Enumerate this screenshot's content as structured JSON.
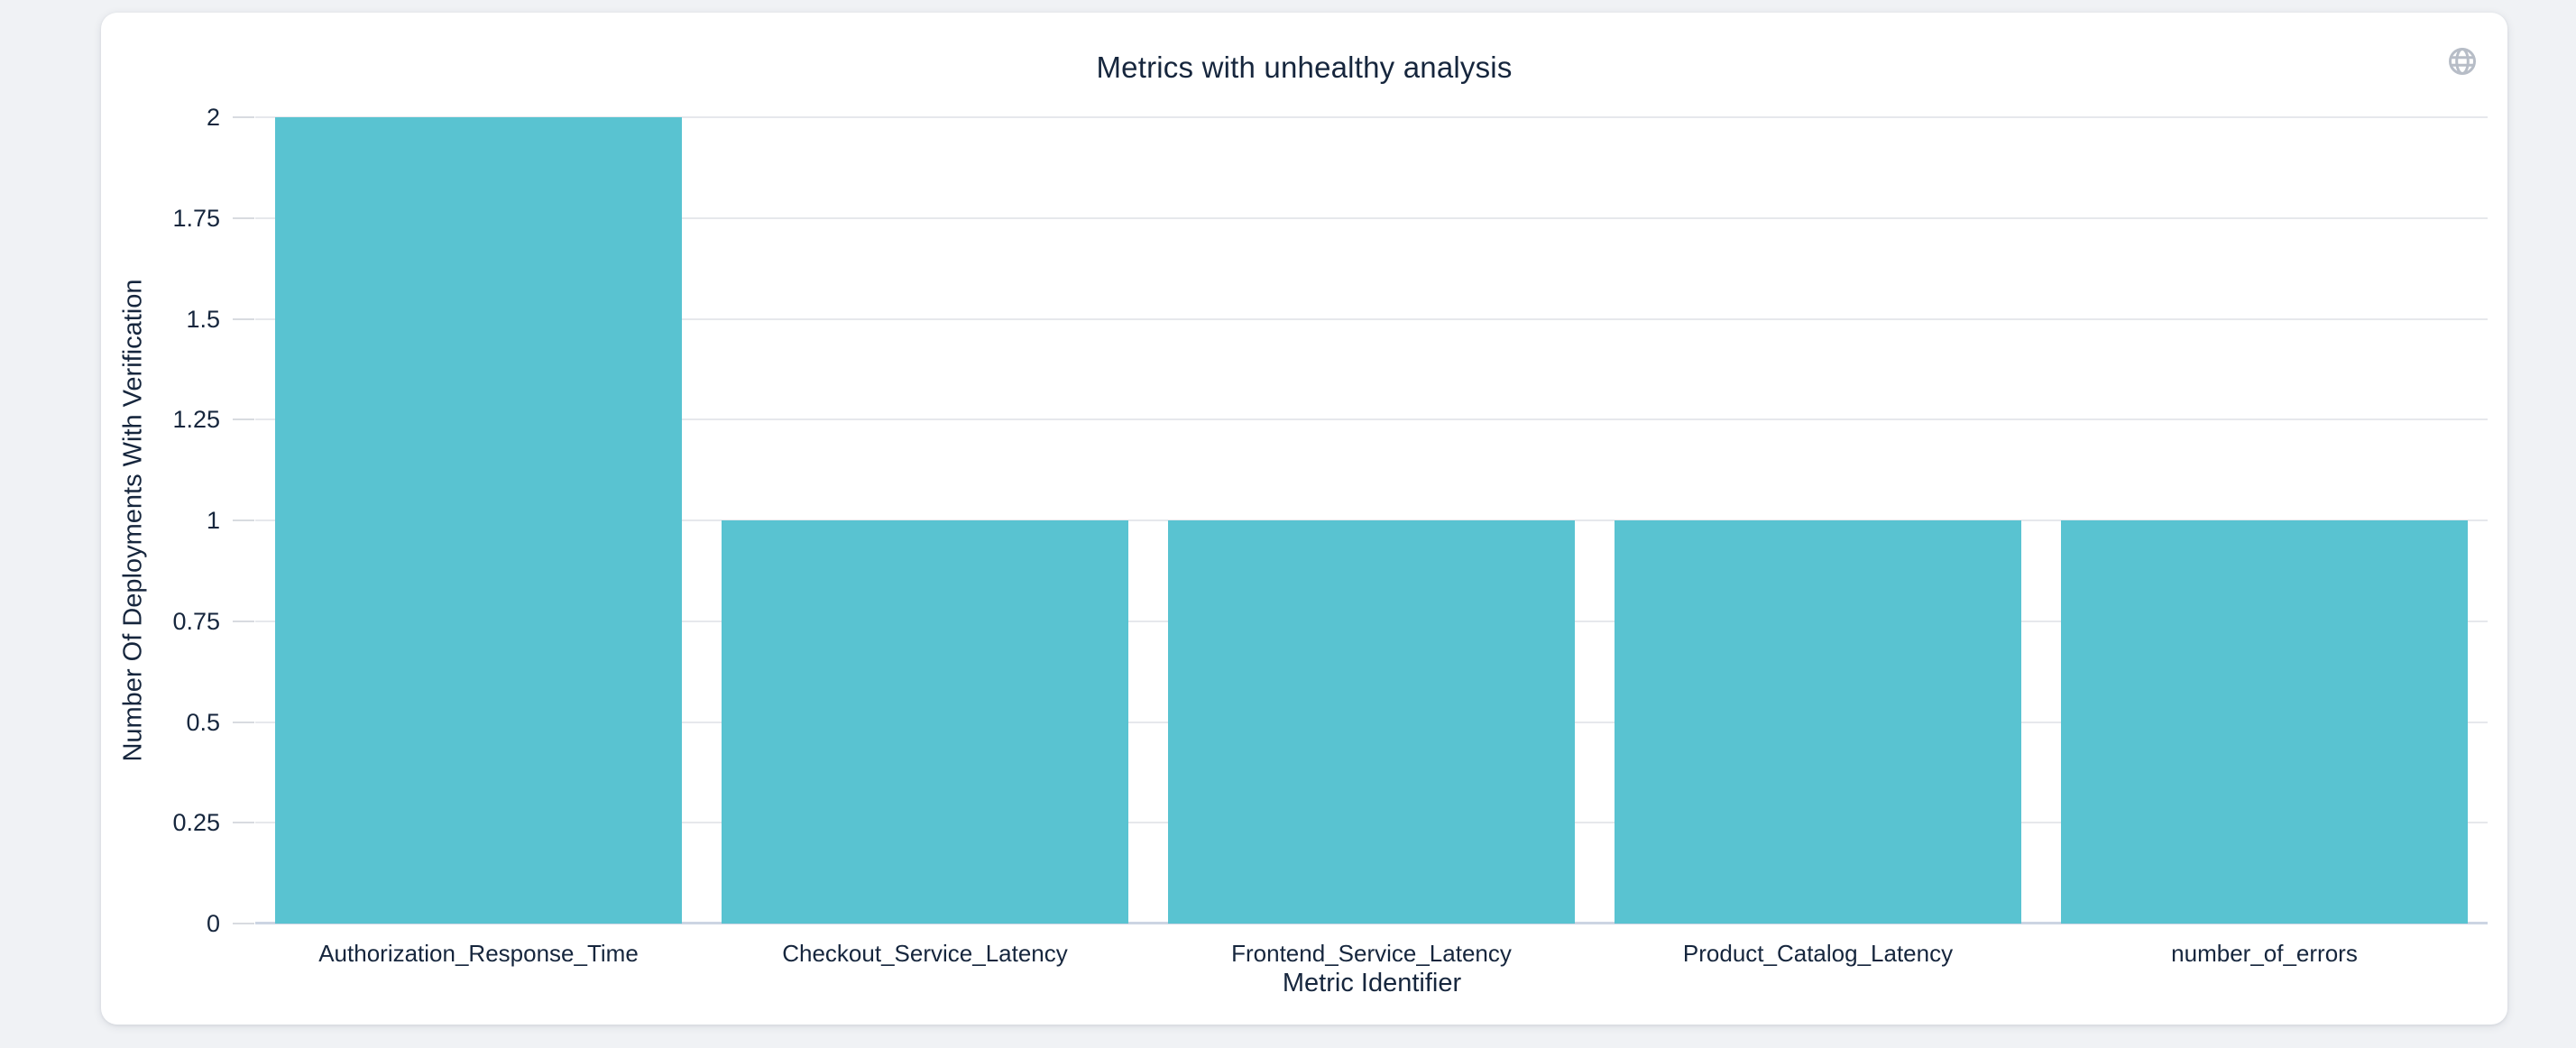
{
  "window": {
    "background_color": "#f0f2f5"
  },
  "card": {
    "background_color": "#ffffff",
    "globe_icon": {
      "name": "globe-icon",
      "color": "#b7bdc7"
    }
  },
  "chart_data": {
    "type": "bar",
    "title": "Metrics with unhealthy analysis",
    "xlabel": "Metric Identifier",
    "ylabel": "Number Of Deployments With Verification",
    "categories": [
      "Authorization_Response_Time",
      "Checkout_Service_Latency",
      "Frontend_Service_Latency",
      "Product_Catalog_Latency",
      "number_of_errors"
    ],
    "values": [
      2,
      1,
      1,
      1,
      1
    ],
    "ylim": [
      0,
      2
    ],
    "yticks": [
      "0",
      "0.25",
      "0.5",
      "0.75",
      "1",
      "1.25",
      "1.5",
      "1.75",
      "2"
    ],
    "grid": true,
    "legend_position": "none",
    "colors": {
      "bar": "#59c3d1",
      "grid_line": "#e6e8ec",
      "axis_line": "#ccd5e3",
      "tick": "#d8dbe0",
      "text": "#16263d"
    }
  }
}
